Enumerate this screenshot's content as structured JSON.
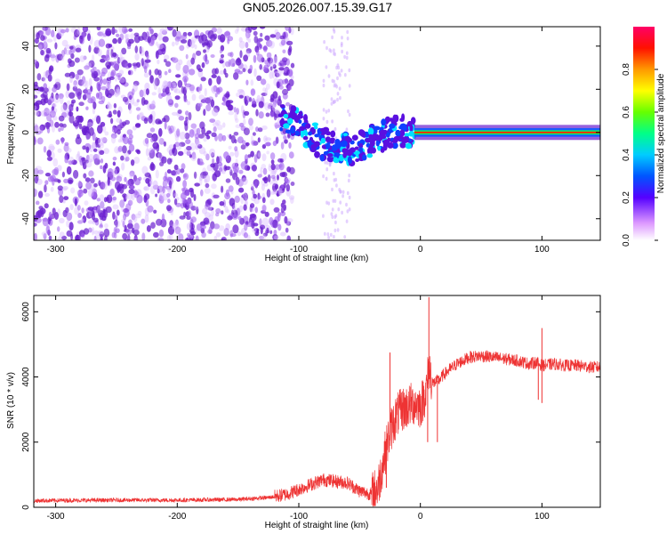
{
  "figure_title": "GN05.2026.007.15.39.G17",
  "colors": {
    "snr_line": "#ee3333",
    "spectrum_scatter": "#6a1fd0",
    "spectrum_track": "#2a8aff",
    "spectrum_core": "#ff2200"
  },
  "chart_data": [
    {
      "type": "heatmap",
      "title": "",
      "xlabel": "Height of straight line (km)",
      "ylabel": "Frequency (Hz)",
      "xlim": [
        -318,
        148
      ],
      "ylim": [
        -50,
        49
      ],
      "x_ticks": [
        -300,
        -200,
        -100,
        0,
        100
      ],
      "y_ticks": [
        -40,
        -20,
        0,
        20,
        40
      ],
      "colorbar": {
        "label": "Normalized spectral amplitude",
        "range": [
          0,
          1
        ],
        "ticks": [
          0.0,
          0.2,
          0.4,
          0.6,
          0.8
        ],
        "colormap": [
          "#ffffff",
          "#cc66ff",
          "#5500ff",
          "#0044ff",
          "#00ccff",
          "#00ff88",
          "#88ff00",
          "#ffff00",
          "#ff8800",
          "#ff0000",
          "#ff0066"
        ]
      },
      "description_series": {
        "noise_region_km": [
          -318,
          -115
        ],
        "descending_track_km": [
          -115,
          -30
        ],
        "track_center_hz": [
          [
            -115,
            7
          ],
          [
            -100,
            3
          ],
          [
            -85,
            -4
          ],
          [
            -70,
            -7
          ],
          [
            -55,
            -8
          ],
          [
            -45,
            -5
          ],
          [
            -35,
            -2
          ],
          [
            -20,
            0
          ],
          [
            -5,
            1
          ],
          [
            0,
            2
          ],
          [
            148,
            0
          ]
        ],
        "core_start_km": -5
      }
    },
    {
      "type": "line",
      "title": "",
      "xlabel": "Height of straight line (km)",
      "ylabel": "SNR (10 * v/v)",
      "xlim": [
        -318,
        148
      ],
      "ylim": [
        0,
        6500
      ],
      "x_ticks": [
        -300,
        -200,
        -100,
        0,
        100
      ],
      "y_ticks": [
        0,
        2000,
        4000,
        6000
      ],
      "series": [
        {
          "name": "SNR",
          "x": [
            -318,
            -300,
            -250,
            -200,
            -150,
            -125,
            -110,
            -100,
            -90,
            -80,
            -70,
            -60,
            -50,
            -40,
            -35,
            -30,
            -25,
            -20,
            -15,
            -10,
            -5,
            0,
            5,
            7,
            10,
            15,
            20,
            30,
            40,
            50,
            60,
            70,
            80,
            90,
            95,
            100,
            110,
            120,
            130,
            140,
            148
          ],
          "values": [
            200,
            210,
            220,
            220,
            240,
            300,
            400,
            550,
            700,
            850,
            800,
            750,
            500,
            400,
            600,
            1500,
            2300,
            2800,
            3000,
            3100,
            3200,
            3100,
            3600,
            4300,
            3800,
            3900,
            4100,
            4400,
            4600,
            4650,
            4600,
            4550,
            4500,
            4400,
            4450,
            4350,
            4400,
            4350,
            4350,
            4300,
            4300
          ]
        }
      ]
    }
  ]
}
